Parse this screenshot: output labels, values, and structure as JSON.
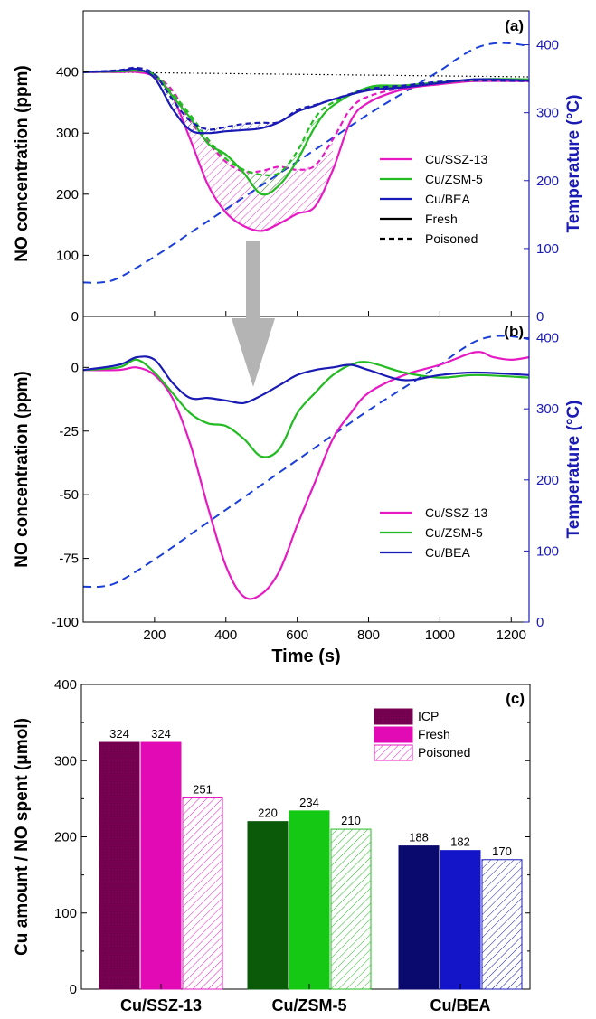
{
  "chart_data": [
    {
      "panel": "(a)",
      "type": "line",
      "ylabel": "NO concentration (ppm)",
      "y2label": "Temperature (°C)",
      "xlim": [
        0,
        1250
      ],
      "ylim": [
        0,
        500
      ],
      "y2lim": [
        0,
        450
      ],
      "x_ticks": [
        200,
        400,
        600,
        800,
        1000,
        1200
      ],
      "y_ticks": [
        0,
        100,
        200,
        300,
        400
      ],
      "y2_ticks": [
        0,
        100,
        200,
        300,
        400
      ],
      "legend": {
        "position": "center-right",
        "entries": [
          "Cu/SSZ-13",
          "Cu/ZSM-5",
          "Cu/BEA",
          "Fresh",
          "Poisoned"
        ]
      },
      "colors": {
        "ssz": "#e619c3",
        "zsm": "#22bb22",
        "bea": "#1a1ab4",
        "temp": "#1a3fd9"
      },
      "baseline": {
        "x": [
          0,
          1250
        ],
        "y": [
          400,
          392
        ]
      },
      "temperature": {
        "x": [
          0,
          50,
          100,
          200,
          300,
          400,
          500,
          600,
          700,
          800,
          900,
          1000,
          1050,
          1100,
          1150,
          1200,
          1250
        ],
        "y": [
          50,
          50,
          57,
          88,
          123,
          158,
          193,
          228,
          263,
          298,
          330,
          362,
          380,
          395,
          402,
          402,
          398
        ]
      },
      "series": [
        {
          "name": "Cu/SSZ-13",
          "style": "Fresh",
          "x": [
            0,
            100,
            150,
            200,
            250,
            300,
            350,
            400,
            450,
            500,
            550,
            600,
            650,
            700,
            750,
            800,
            900,
            1000,
            1100,
            1250
          ],
          "y": [
            400,
            400,
            400,
            392,
            360,
            290,
            215,
            170,
            148,
            140,
            152,
            168,
            180,
            240,
            320,
            350,
            372,
            380,
            385,
            385
          ]
        },
        {
          "name": "Cu/SSZ-13",
          "style": "Poisoned",
          "x": [
            0,
            100,
            150,
            200,
            250,
            300,
            350,
            400,
            450,
            500,
            550,
            600,
            650,
            700,
            750,
            800,
            900,
            1000,
            1100,
            1250
          ],
          "y": [
            400,
            400,
            400,
            393,
            370,
            320,
            285,
            253,
            237,
            238,
            245,
            240,
            247,
            290,
            340,
            360,
            375,
            382,
            387,
            387
          ]
        },
        {
          "name": "Cu/ZSM-5",
          "style": "Fresh",
          "x": [
            0,
            100,
            150,
            200,
            250,
            300,
            350,
            400,
            450,
            500,
            550,
            600,
            650,
            700,
            800,
            900,
            1000,
            1100,
            1250
          ],
          "y": [
            400,
            401,
            402,
            395,
            360,
            325,
            283,
            265,
            235,
            200,
            215,
            255,
            310,
            345,
            375,
            378,
            382,
            388,
            388
          ]
        },
        {
          "name": "Cu/ZSM-5",
          "style": "Poisoned",
          "x": [
            0,
            100,
            150,
            200,
            250,
            300,
            350,
            400,
            450,
            500,
            550,
            600,
            650,
            700,
            800,
            900,
            1000,
            1100,
            1250
          ],
          "y": [
            400,
            401,
            402,
            396,
            365,
            330,
            290,
            258,
            240,
            232,
            235,
            270,
            325,
            350,
            372,
            378,
            383,
            387,
            387
          ]
        },
        {
          "name": "Cu/BEA",
          "style": "Fresh",
          "x": [
            0,
            100,
            150,
            200,
            250,
            300,
            350,
            400,
            450,
            500,
            550,
            600,
            650,
            700,
            800,
            900,
            1000,
            1100,
            1250
          ],
          "y": [
            400,
            402,
            405,
            390,
            340,
            305,
            300,
            303,
            305,
            308,
            318,
            335,
            345,
            355,
            370,
            375,
            382,
            388,
            386
          ]
        },
        {
          "name": "Cu/BEA",
          "style": "Poisoned",
          "x": [
            0,
            100,
            150,
            200,
            250,
            300,
            350,
            400,
            450,
            500,
            550,
            600,
            650,
            700,
            800,
            900,
            1000,
            1100,
            1250
          ],
          "y": [
            400,
            403,
            407,
            396,
            355,
            320,
            306,
            310,
            315,
            317,
            318,
            338,
            346,
            355,
            372,
            378,
            384,
            386,
            385
          ]
        }
      ]
    },
    {
      "panel": "(b)",
      "type": "line",
      "xlabel": "Time (s)",
      "ylabel": "NO concentration (ppm)",
      "y2label": "Temperature (°C)",
      "xlim": [
        0,
        1250
      ],
      "ylim": [
        -100,
        20
      ],
      "y2lim": [
        0,
        430
      ],
      "x_ticks": [
        200,
        400,
        600,
        800,
        1000,
        1200
      ],
      "y_ticks": [
        -100,
        -75,
        -50,
        -25,
        0
      ],
      "y2_ticks": [
        0,
        100,
        200,
        300,
        400
      ],
      "legend": {
        "position": "bottom-right",
        "entries": [
          "Cu/SSZ-13",
          "Cu/ZSM-5",
          "Cu/BEA"
        ]
      },
      "temperature": {
        "x": [
          0,
          50,
          100,
          200,
          300,
          400,
          500,
          600,
          700,
          800,
          900,
          1000,
          1050,
          1100,
          1150,
          1200,
          1250
        ],
        "y": [
          50,
          50,
          57,
          88,
          123,
          158,
          193,
          228,
          263,
          298,
          330,
          362,
          380,
          395,
          402,
          402,
          398
        ]
      },
      "series": [
        {
          "name": "Cu/SSZ-13",
          "x": [
            0,
            100,
            150,
            200,
            250,
            300,
            350,
            400,
            450,
            500,
            550,
            600,
            650,
            700,
            750,
            800,
            900,
            1000,
            1100,
            1150,
            1200,
            1250
          ],
          "y": [
            -1,
            -1,
            0,
            -3,
            -12,
            -30,
            -55,
            -78,
            -90,
            -89,
            -80,
            -62,
            -45,
            -28,
            -18,
            -10,
            -3,
            1,
            6,
            4,
            3,
            4
          ]
        },
        {
          "name": "Cu/ZSM-5",
          "x": [
            0,
            100,
            150,
            200,
            250,
            300,
            350,
            400,
            450,
            500,
            550,
            600,
            650,
            700,
            750,
            800,
            900,
            1000,
            1100,
            1250
          ],
          "y": [
            -1,
            0,
            3,
            -2,
            -10,
            -18,
            -22,
            -23,
            -28,
            -35,
            -32,
            -18,
            -10,
            -3,
            1,
            2,
            -2,
            -4,
            -3,
            -4
          ]
        },
        {
          "name": "Cu/BEA",
          "x": [
            0,
            100,
            150,
            200,
            250,
            300,
            350,
            400,
            450,
            500,
            550,
            600,
            650,
            700,
            750,
            800,
            900,
            1000,
            1100,
            1250
          ],
          "y": [
            -1,
            1,
            4,
            3,
            -6,
            -12,
            -12,
            -13,
            -14,
            -11,
            -7,
            -3,
            -1,
            0,
            1,
            -1,
            -5,
            -3,
            -2,
            -3
          ]
        }
      ]
    },
    {
      "panel": "(c)",
      "type": "bar",
      "ylabel": "Cu amount / NO spent (μmol)",
      "ylim": [
        0,
        400
      ],
      "y_ticks": [
        0,
        100,
        200,
        300,
        400
      ],
      "categories": [
        "Cu/SSZ-13",
        "Cu/ZSM-5",
        "Cu/BEA"
      ],
      "legend": {
        "position": "top-right",
        "entries": [
          "ICP",
          "Fresh",
          "Poisoned"
        ]
      },
      "series": [
        {
          "name": "ICP",
          "values": [
            324,
            220,
            188
          ]
        },
        {
          "name": "Fresh",
          "values": [
            324,
            234,
            182
          ]
        },
        {
          "name": "Poisoned",
          "values": [
            251,
            210,
            170
          ]
        }
      ],
      "bar_colors": {
        "ICP": [
          "#780053",
          "#0a5a0a",
          "#0a0a6e"
        ],
        "Fresh": [
          "#e10ab4",
          "#14c814",
          "#1414c8"
        ],
        "Poisoned": [
          "#e619c3",
          "#22bb22",
          "#1a1ab4"
        ]
      }
    }
  ]
}
